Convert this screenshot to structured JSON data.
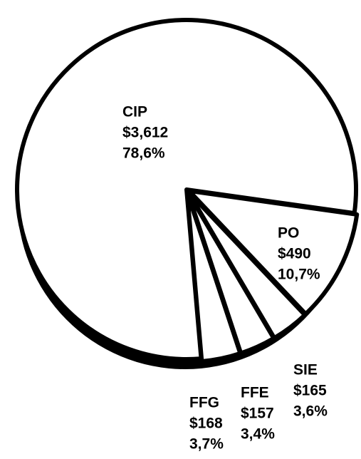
{
  "chart_data": {
    "type": "pie",
    "categories": [
      "CIP",
      "PO",
      "SIE",
      "FFE",
      "FFG"
    ],
    "values": [
      78.6,
      10.7,
      3.6,
      3.4,
      3.7
    ],
    "value_labels": [
      "78,6%",
      "10,7%",
      "3,6%",
      "3,4%",
      "3,7%"
    ],
    "amounts": [
      3612,
      490,
      165,
      157,
      168
    ],
    "amount_labels": [
      "$3,612",
      "$490",
      "$165",
      "$157",
      "$168"
    ],
    "color": "#ffffff"
  }
}
